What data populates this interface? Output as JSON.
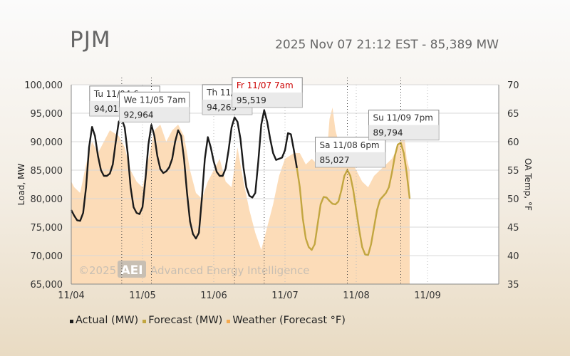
{
  "header": {
    "title": "PJM",
    "timestamp": "2025 Nov 07 21:12 EST - 85,389 MW"
  },
  "colors": {
    "actual": "#1a1a1a",
    "forecast": "#c2a640",
    "weather_fill": "#fbd6ab",
    "weather_swatch": "#f5a94e",
    "highlight_label": "#cc0000"
  },
  "watermark": {
    "copyright": "©2025",
    "logo": "AEI",
    "company": "Advanced Energy Intelligence"
  },
  "chart_data": {
    "type": "line",
    "ylabel": "Load, MW",
    "y2label": "OA Temp, °F",
    "ylim": [
      65000,
      100000
    ],
    "y2lim": [
      35,
      70
    ],
    "xlim_hours": [
      0,
      144
    ],
    "yticks": [
      "65,000",
      "70,000",
      "75,000",
      "80,000",
      "85,000",
      "90,000",
      "95,000",
      "100,000"
    ],
    "y2ticks": [
      "35",
      "40",
      "45",
      "50",
      "55",
      "60",
      "65",
      "70"
    ],
    "xticks": [
      {
        "label": "11/04",
        "hour": 0
      },
      {
        "label": "11/05",
        "hour": 24
      },
      {
        "label": "11/06",
        "hour": 48
      },
      {
        "label": "11/07",
        "hour": 72
      },
      {
        "label": "11/08",
        "hour": 96
      },
      {
        "label": "11/09",
        "hour": 120
      }
    ],
    "series": [
      {
        "name": "Actual (MW)",
        "points": [
          [
            0,
            78000
          ],
          [
            1,
            77000
          ],
          [
            2,
            76200
          ],
          [
            3,
            76100
          ],
          [
            4,
            77500
          ],
          [
            5,
            82000
          ],
          [
            6,
            89000
          ],
          [
            7,
            92600
          ],
          [
            8,
            91000
          ],
          [
            9,
            87500
          ],
          [
            10,
            85000
          ],
          [
            11,
            84000
          ],
          [
            12,
            84000
          ],
          [
            13,
            84400
          ],
          [
            14,
            86000
          ],
          [
            15,
            90000
          ],
          [
            16,
            93500
          ],
          [
            17,
            94019
          ],
          [
            18,
            92500
          ],
          [
            19,
            88000
          ],
          [
            20,
            82000
          ],
          [
            21,
            78500
          ],
          [
            22,
            77500
          ],
          [
            23,
            77300
          ],
          [
            24,
            78500
          ],
          [
            25,
            83500
          ],
          [
            26,
            89500
          ],
          [
            27,
            92964
          ],
          [
            28,
            91000
          ],
          [
            29,
            87500
          ],
          [
            30,
            85200
          ],
          [
            31,
            84500
          ],
          [
            32,
            84800
          ],
          [
            33,
            85500
          ],
          [
            34,
            87000
          ],
          [
            35,
            90000
          ],
          [
            36,
            92000
          ],
          [
            37,
            91000
          ],
          [
            38,
            87000
          ],
          [
            39,
            81000
          ],
          [
            40,
            76000
          ],
          [
            41,
            73800
          ],
          [
            42,
            73000
          ],
          [
            43,
            74000
          ],
          [
            44,
            80000
          ],
          [
            45,
            87000
          ],
          [
            46,
            90800
          ],
          [
            47,
            89000
          ],
          [
            48,
            86500
          ],
          [
            49,
            84700
          ],
          [
            50,
            84000
          ],
          [
            51,
            84000
          ],
          [
            52,
            85300
          ],
          [
            53,
            88500
          ],
          [
            54,
            92500
          ],
          [
            55,
            94263
          ],
          [
            56,
            93500
          ],
          [
            57,
            90500
          ],
          [
            58,
            85500
          ],
          [
            59,
            82000
          ],
          [
            60,
            80500
          ],
          [
            61,
            80200
          ],
          [
            62,
            81000
          ],
          [
            63,
            86500
          ],
          [
            64,
            93000
          ],
          [
            65,
            95519
          ],
          [
            66,
            93500
          ],
          [
            67,
            90500
          ],
          [
            68,
            88000
          ],
          [
            69,
            86800
          ],
          [
            70,
            87000
          ],
          [
            71,
            87200
          ],
          [
            72,
            88500
          ],
          [
            73,
            91500
          ],
          [
            74,
            91300
          ],
          [
            75,
            88500
          ],
          [
            76,
            85389
          ]
        ]
      },
      {
        "name": "Forecast (MW)",
        "points": [
          [
            76,
            85389
          ],
          [
            77,
            82000
          ],
          [
            78,
            76500
          ],
          [
            79,
            73000
          ],
          [
            80,
            71500
          ],
          [
            81,
            71000
          ],
          [
            82,
            72000
          ],
          [
            83,
            75500
          ],
          [
            84,
            79000
          ],
          [
            85,
            80300
          ],
          [
            86,
            80200
          ],
          [
            87,
            79600
          ],
          [
            88,
            79100
          ],
          [
            89,
            79000
          ],
          [
            90,
            79500
          ],
          [
            91,
            81500
          ],
          [
            92,
            84000
          ],
          [
            93,
            85027
          ],
          [
            94,
            84000
          ],
          [
            95,
            81500
          ],
          [
            96,
            78000
          ],
          [
            97,
            74500
          ],
          [
            98,
            71500
          ],
          [
            99,
            70200
          ],
          [
            100,
            70100
          ],
          [
            101,
            72000
          ],
          [
            102,
            75000
          ],
          [
            103,
            78000
          ],
          [
            104,
            79800
          ],
          [
            105,
            80400
          ],
          [
            106,
            81000
          ],
          [
            107,
            82000
          ],
          [
            108,
            84500
          ],
          [
            109,
            87500
          ],
          [
            110,
            89500
          ],
          [
            111,
            89794
          ],
          [
            112,
            88000
          ],
          [
            113,
            84500
          ],
          [
            114,
            80000
          ]
        ]
      },
      {
        "name": "Weather (Forecast °F)",
        "points": [
          [
            0,
            53
          ],
          [
            1,
            52
          ],
          [
            3,
            51
          ],
          [
            5,
            56
          ],
          [
            7,
            60
          ],
          [
            9,
            58
          ],
          [
            11,
            60
          ],
          [
            13,
            62
          ],
          [
            16,
            61
          ],
          [
            18,
            59
          ],
          [
            20,
            55
          ],
          [
            22,
            53
          ],
          [
            24,
            52
          ],
          [
            26,
            57
          ],
          [
            28,
            62
          ],
          [
            30,
            63
          ],
          [
            32,
            60
          ],
          [
            34,
            62
          ],
          [
            36,
            63
          ],
          [
            38,
            61
          ],
          [
            40,
            55
          ],
          [
            42,
            51
          ],
          [
            44,
            50
          ],
          [
            46,
            53
          ],
          [
            48,
            55
          ],
          [
            50,
            57
          ],
          [
            52,
            53
          ],
          [
            54,
            52
          ],
          [
            56,
            59
          ],
          [
            58,
            53
          ],
          [
            60,
            48
          ],
          [
            62,
            44
          ],
          [
            64,
            41
          ],
          [
            66,
            45
          ],
          [
            68,
            49
          ],
          [
            70,
            54
          ],
          [
            72,
            57
          ],
          [
            75,
            58
          ],
          [
            77,
            58
          ],
          [
            79,
            56
          ],
          [
            81,
            57
          ],
          [
            83,
            56
          ],
          [
            84,
            56
          ],
          [
            86,
            57
          ],
          [
            87,
            64
          ],
          [
            88,
            66
          ],
          [
            89,
            62
          ],
          [
            90,
            60
          ],
          [
            92,
            60
          ],
          [
            94,
            57
          ],
          [
            96,
            55
          ],
          [
            98,
            53
          ],
          [
            100,
            52
          ],
          [
            102,
            54
          ],
          [
            104,
            55
          ],
          [
            106,
            56
          ],
          [
            108,
            57
          ],
          [
            110,
            59
          ],
          [
            112,
            62
          ],
          [
            113,
            57
          ],
          [
            114,
            55
          ]
        ]
      }
    ],
    "callouts": [
      {
        "series": 0,
        "hour": 17,
        "label": "Tu 11/04 6pm",
        "value": "94,019",
        "highlight": false
      },
      {
        "series": 0,
        "hour": 27,
        "label": "We 11/05 7am",
        "value": "92,964",
        "highlight": false
      },
      {
        "series": 0,
        "hour": 55,
        "label": "Th 11/06",
        "value": "94,263",
        "highlight": false
      },
      {
        "series": 0,
        "hour": 65,
        "label": "Fr 11/07 7am",
        "value": "95,519",
        "highlight": true
      },
      {
        "series": 1,
        "hour": 93,
        "label": "Sa 11/08 6pm",
        "value": "85,027",
        "highlight": false
      },
      {
        "series": 1,
        "hour": 111,
        "label": "Su 11/09 7pm",
        "value": "89,794",
        "highlight": false
      }
    ],
    "legend": [
      "Actual (MW)",
      "Forecast (MW)",
      "Weather (Forecast °F)"
    ],
    "legend_position": "bottom"
  }
}
